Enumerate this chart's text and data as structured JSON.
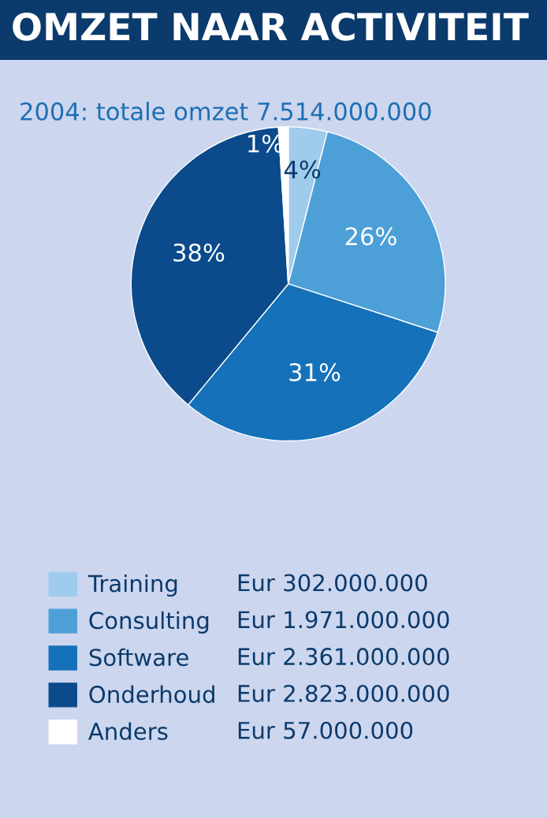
{
  "chart_data": {
    "type": "pie",
    "title": "OMZET NAAR ACTIVITEIT",
    "subtitle": "2004: totale omzet 7.514.000.000",
    "categories": [
      "Training",
      "Consulting",
      "Software",
      "Onderhoud",
      "Anders"
    ],
    "values": [
      4,
      26,
      31,
      38,
      1
    ],
    "colors": [
      "#9fcbec",
      "#4d9fd8",
      "#1571b9",
      "#0b4b8c",
      "#ffffff"
    ],
    "value_labels": [
      "4%",
      "26%",
      "31%",
      "38%",
      "1%"
    ],
    "annotations": [
      "Eur 302.000.000",
      "Eur 1.971.000.000",
      "Eur 2.361.000.000",
      "Eur 2.823.000.000",
      "Eur 57.000.000"
    ],
    "legend": "bottom"
  }
}
